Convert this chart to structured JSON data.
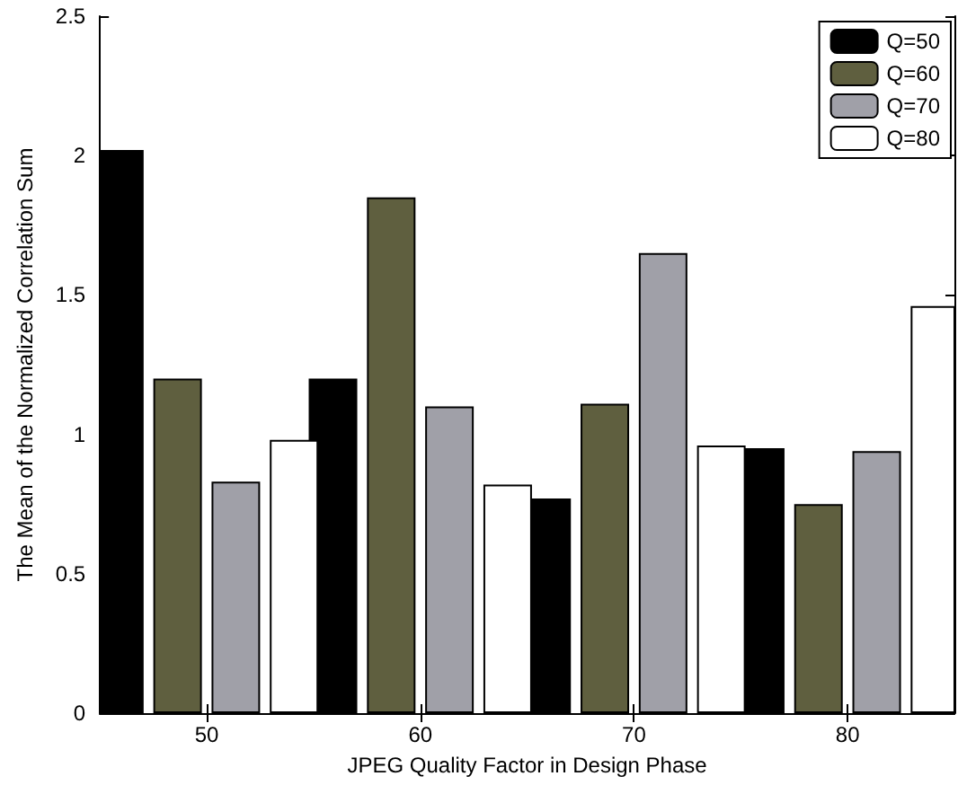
{
  "chart_data": {
    "type": "bar",
    "xlabel": "JPEG Quality Factor in Design Phase",
    "ylabel": "The Mean of the Normalized Correlation Sum",
    "categories": [
      "50",
      "60",
      "70",
      "80"
    ],
    "series": [
      {
        "name": "Q=50",
        "color": "#000000",
        "values": [
          2.02,
          1.2,
          0.77,
          0.95
        ]
      },
      {
        "name": "Q=60",
        "color": "#5f5f3f",
        "values": [
          1.2,
          1.85,
          1.11,
          0.75
        ]
      },
      {
        "name": "Q=70",
        "color": "#a0a0a8",
        "values": [
          0.83,
          1.1,
          1.65,
          0.94
        ]
      },
      {
        "name": "Q=80",
        "color": "#ffffff",
        "values": [
          0.98,
          0.82,
          0.96,
          1.46
        ]
      }
    ],
    "ylim": [
      0,
      2.5
    ],
    "yticks": [
      0,
      0.5,
      1,
      1.5,
      2,
      2.5
    ],
    "grid": false,
    "legend": "top right"
  }
}
